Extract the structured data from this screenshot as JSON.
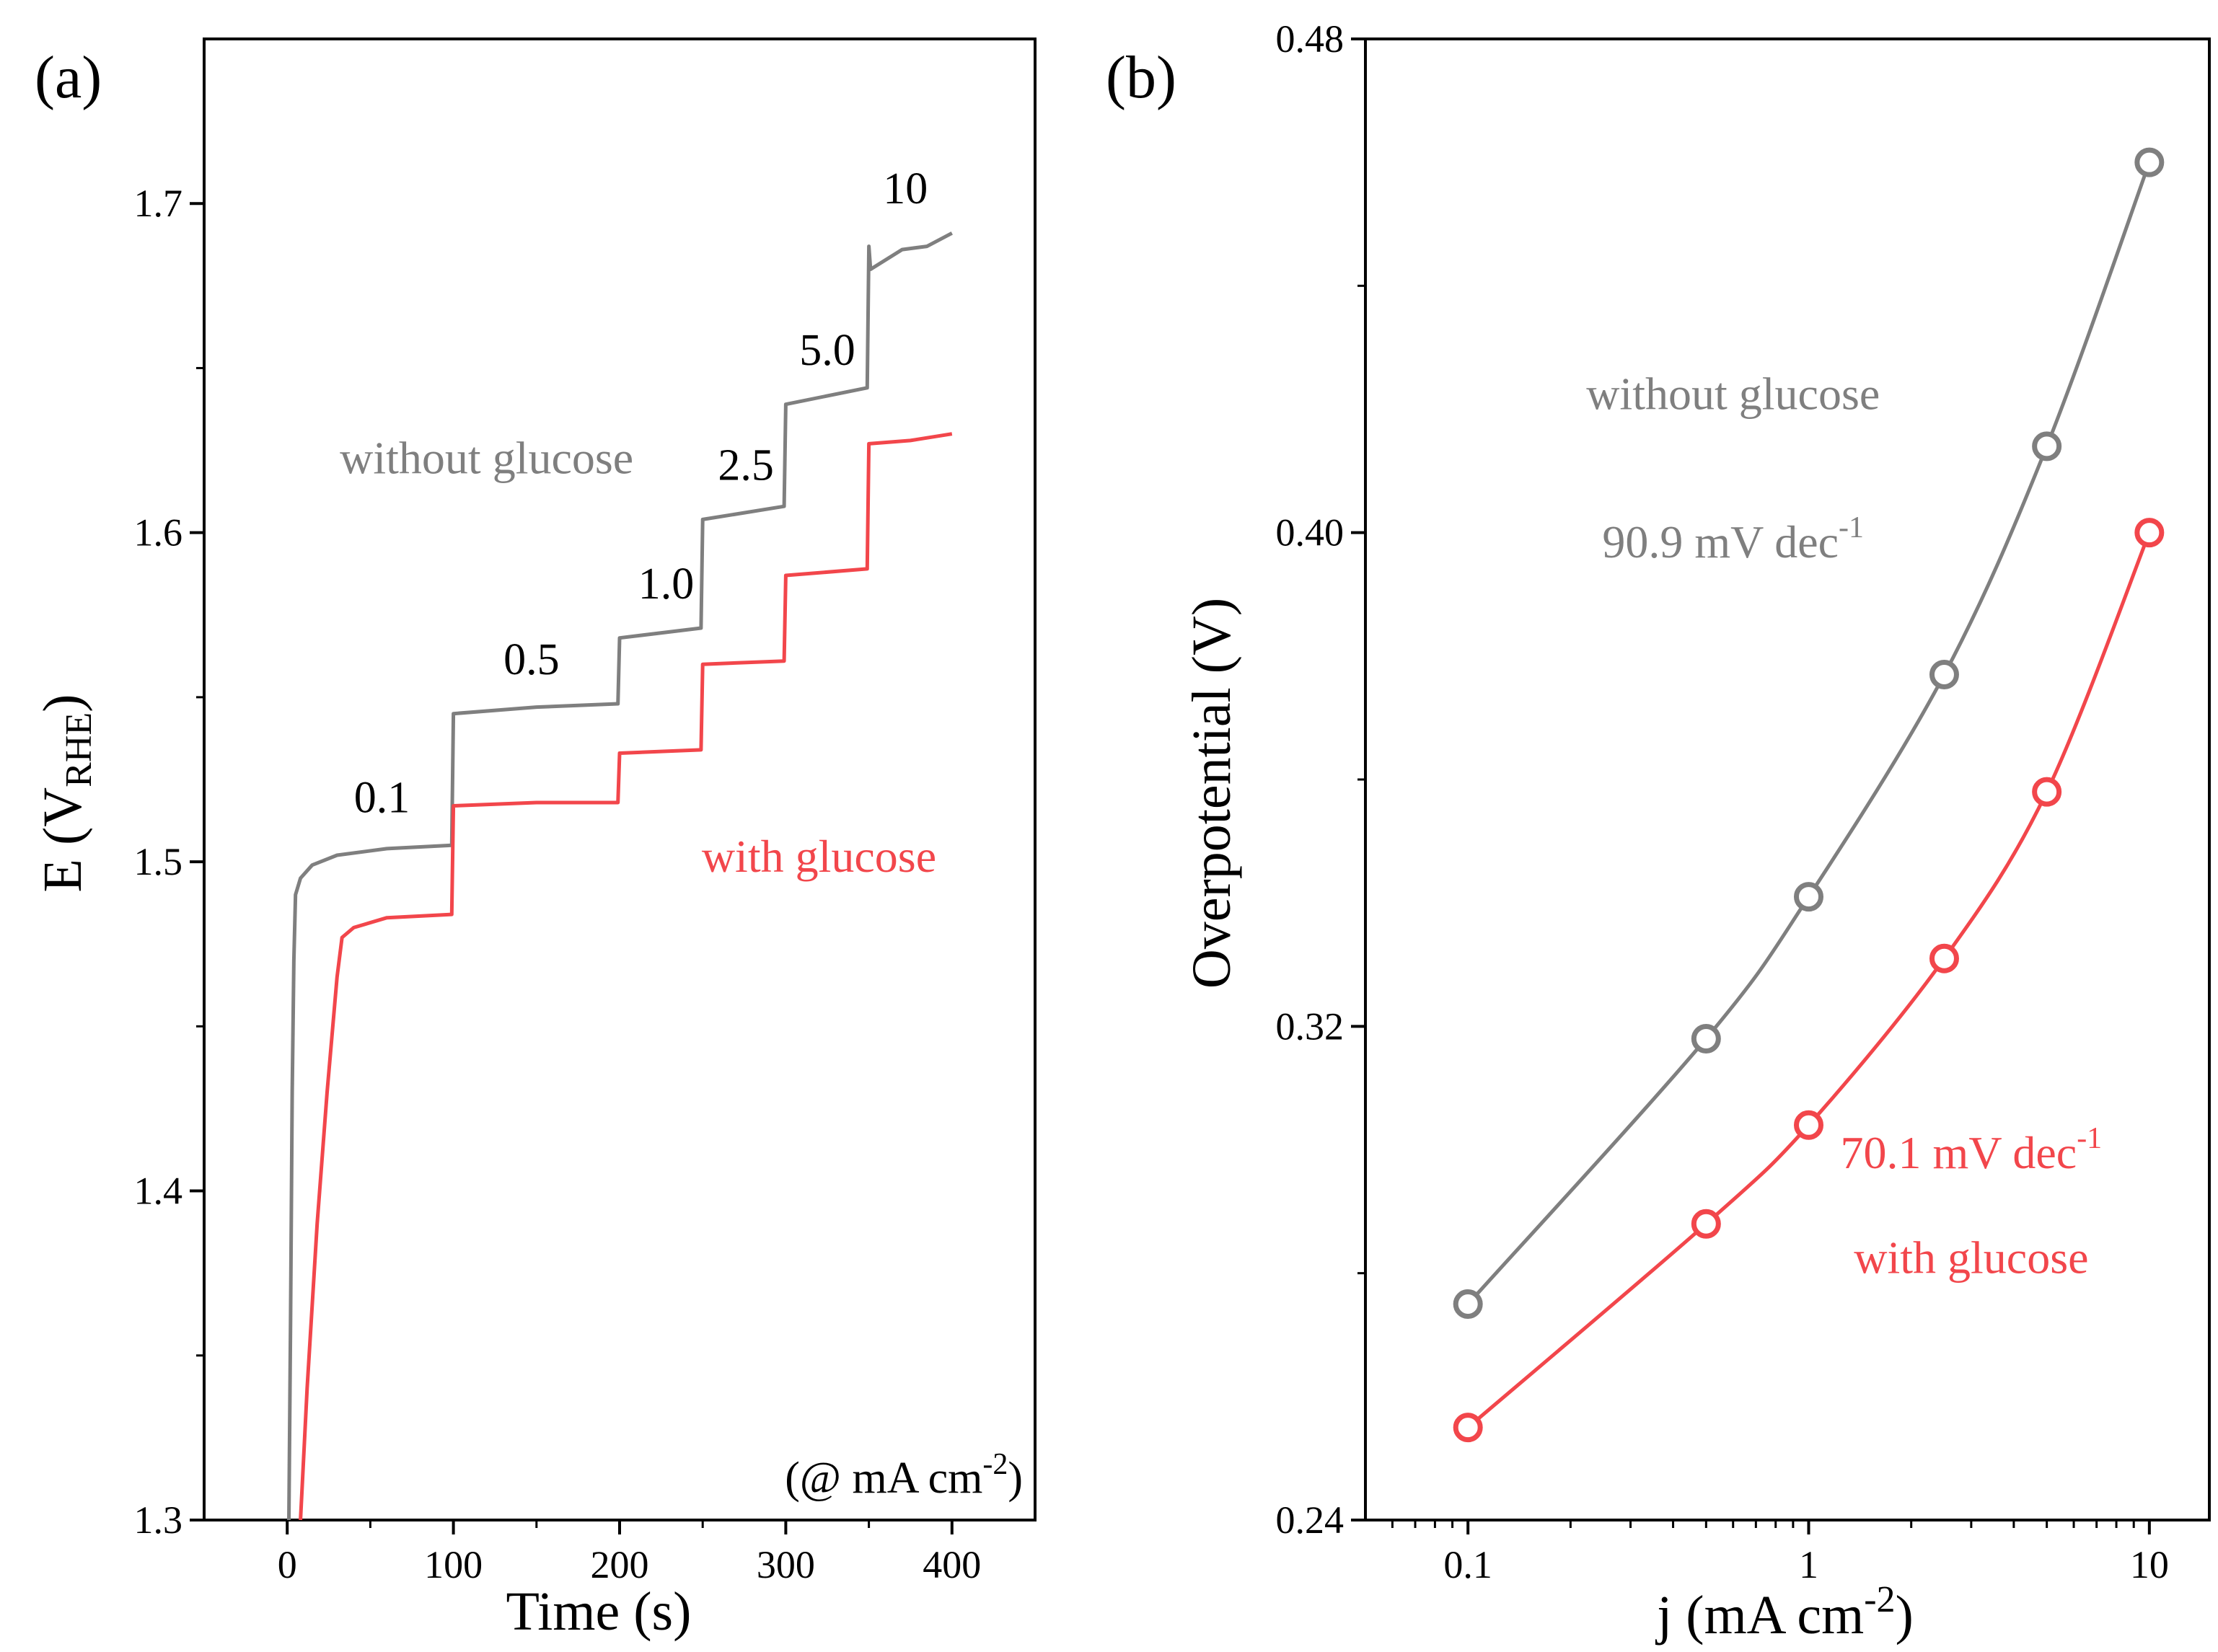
{
  "colors": {
    "gray": "#7f7f7f",
    "red": "#f2464b",
    "axis": "#000000"
  },
  "chart_data": [
    {
      "panel_label": "(a)",
      "type": "line",
      "xlabel": "Time (s)",
      "ylabel": {
        "main": "E (V",
        "sub": "RHE",
        "close": ")"
      },
      "xlim": [
        -50,
        450
      ],
      "ylim": [
        1.3,
        1.75
      ],
      "xticks": [
        0,
        100,
        200,
        300,
        400
      ],
      "xtick_labels": [
        "0",
        "100",
        "200",
        "300",
        "400"
      ],
      "yticks": [
        1.3,
        1.4,
        1.5,
        1.6,
        1.7
      ],
      "ytick_labels": [
        "1.3",
        "1.4",
        "1.5",
        "1.6",
        "1.7"
      ],
      "step_labels": [
        {
          "text": "0.1",
          "x": 57,
          "y": 1.515
        },
        {
          "text": "0.5",
          "x": 147,
          "y": 1.557
        },
        {
          "text": "1.0",
          "x": 228,
          "y": 1.58
        },
        {
          "text": "2.5",
          "x": 276,
          "y": 1.616
        },
        {
          "text": "5.0",
          "x": 325,
          "y": 1.651
        },
        {
          "text": "10",
          "x": 372,
          "y": 1.7
        }
      ],
      "unit_note": {
        "main": "(@ mA cm",
        "sup": "-2",
        "close": ")"
      },
      "series": [
        {
          "name": "without glucose",
          "color": "#7f7f7f",
          "label_pos": {
            "x": 120,
            "y": 1.618
          },
          "points": [
            [
              1,
              1.3
            ],
            [
              2,
              1.36
            ],
            [
              3,
              1.43
            ],
            [
              4,
              1.47
            ],
            [
              5,
              1.49
            ],
            [
              8,
              1.495
            ],
            [
              15,
              1.499
            ],
            [
              30,
              1.502
            ],
            [
              60,
              1.504
            ],
            [
              99,
              1.505
            ],
            [
              100,
              1.545
            ],
            [
              150,
              1.547
            ],
            [
              199,
              1.548
            ],
            [
              200,
              1.568
            ],
            [
              249,
              1.571
            ],
            [
              250,
              1.604
            ],
            [
              299,
              1.608
            ],
            [
              300,
              1.639
            ],
            [
              349,
              1.644
            ],
            [
              350,
              1.687
            ],
            [
              351,
              1.68
            ],
            [
              370,
              1.686
            ],
            [
              385,
              1.687
            ],
            [
              400,
              1.691
            ]
          ]
        },
        {
          "name": "with glucose",
          "color": "#f2464b",
          "label_pos": {
            "x": 320,
            "y": 1.497
          },
          "points": [
            [
              8,
              1.3
            ],
            [
              12,
              1.34
            ],
            [
              18,
              1.39
            ],
            [
              24,
              1.43
            ],
            [
              30,
              1.465
            ],
            [
              33,
              1.477
            ],
            [
              40,
              1.48
            ],
            [
              60,
              1.483
            ],
            [
              99,
              1.484
            ],
            [
              100,
              1.517
            ],
            [
              150,
              1.518
            ],
            [
              199,
              1.518
            ],
            [
              200,
              1.533
            ],
            [
              249,
              1.534
            ],
            [
              250,
              1.56
            ],
            [
              299,
              1.561
            ],
            [
              300,
              1.587
            ],
            [
              349,
              1.589
            ],
            [
              350,
              1.627
            ],
            [
              375,
              1.628
            ],
            [
              400,
              1.63
            ]
          ]
        }
      ]
    },
    {
      "panel_label": "(b)",
      "type": "scatter",
      "x_scale": "log",
      "xlabel": {
        "main": "j (mA cm",
        "sup": "-2",
        "close": ")"
      },
      "ylabel": "Overpotential (V)",
      "xlim": [
        0.05,
        15
      ],
      "ylim": [
        0.24,
        0.48
      ],
      "xticks": [
        0.1,
        1,
        10
      ],
      "xtick_labels": [
        "0.1",
        "1",
        "10"
      ],
      "yticks": [
        0.24,
        0.32,
        0.4,
        0.48
      ],
      "ytick_labels": [
        "0.24",
        "0.32",
        "0.40",
        "0.48"
      ],
      "series": [
        {
          "name": "without glucose",
          "color": "#7f7f7f",
          "slope": {
            "main": "90.9 mV dec",
            "sup": "-1"
          },
          "label_pos": {
            "x": 0.6,
            "y": 0.42
          },
          "slope_pos": {
            "x": 0.6,
            "y": 0.396
          },
          "x": [
            0.1,
            0.5,
            1,
            2.5,
            5,
            10
          ],
          "y": [
            0.275,
            0.318,
            0.341,
            0.377,
            0.414,
            0.46
          ]
        },
        {
          "name": "with glucose",
          "color": "#f2464b",
          "slope": {
            "main": "70.1 mV dec",
            "sup": "-1"
          },
          "label_pos": {
            "x": 3.0,
            "y": 0.28
          },
          "slope_pos": {
            "x": 3.0,
            "y": 0.297
          },
          "x": [
            0.1,
            0.5,
            1,
            2.5,
            5,
            10
          ],
          "y": [
            0.255,
            0.288,
            0.304,
            0.331,
            0.358,
            0.4
          ]
        }
      ]
    }
  ]
}
